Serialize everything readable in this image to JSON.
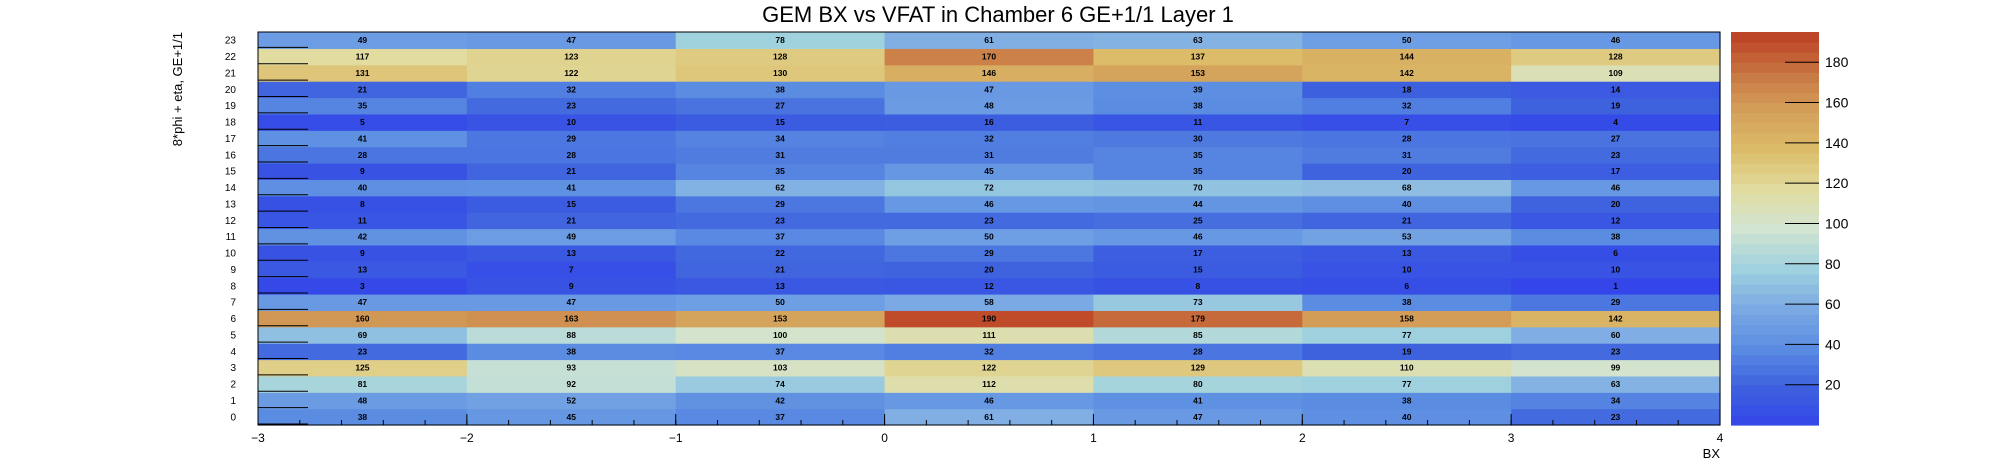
{
  "chart_data": {
    "type": "heatmap",
    "title": "GEM BX vs VFAT in Chamber 6 GE+1/1 Layer 1",
    "xlabel": "BX",
    "ylabel": "8*phi + eta, GE+1/1",
    "x_bins": [
      -3,
      -2,
      -1,
      0,
      1,
      2,
      3,
      4
    ],
    "x_ticks": [
      "−3",
      "−2",
      "−1",
      "0",
      "1",
      "2",
      "3",
      "4"
    ],
    "y_bins": [
      0,
      1,
      2,
      3,
      4,
      5,
      6,
      7,
      8,
      9,
      10,
      11,
      12,
      13,
      14,
      15,
      16,
      17,
      18,
      19,
      20,
      21,
      22,
      23
    ],
    "xlim": [
      -3,
      4
    ],
    "ylim": [
      0,
      24
    ],
    "zlim": [
      0,
      195
    ],
    "z_ticks": [
      20,
      40,
      60,
      80,
      100,
      120,
      140,
      160,
      180
    ],
    "values": [
      [
        38,
        45,
        37,
        61,
        47,
        40,
        23
      ],
      [
        48,
        52,
        42,
        46,
        41,
        38,
        34
      ],
      [
        81,
        92,
        74,
        112,
        80,
        77,
        63
      ],
      [
        125,
        93,
        103,
        122,
        129,
        110,
        99
      ],
      [
        23,
        38,
        37,
        32,
        28,
        19,
        23
      ],
      [
        69,
        88,
        100,
        111,
        85,
        77,
        60
      ],
      [
        160,
        163,
        153,
        190,
        179,
        158,
        142
      ],
      [
        47,
        47,
        50,
        58,
        73,
        38,
        29
      ],
      [
        3,
        9,
        13,
        12,
        8,
        6,
        1
      ],
      [
        13,
        7,
        21,
        20,
        15,
        10,
        10
      ],
      [
        9,
        13,
        22,
        29,
        17,
        13,
        6
      ],
      [
        42,
        49,
        37,
        50,
        46,
        53,
        38
      ],
      [
        11,
        21,
        23,
        23,
        25,
        21,
        12
      ],
      [
        8,
        15,
        29,
        46,
        44,
        40,
        20
      ],
      [
        40,
        41,
        62,
        72,
        70,
        68,
        46
      ],
      [
        9,
        21,
        35,
        45,
        35,
        20,
        17
      ],
      [
        28,
        28,
        31,
        31,
        35,
        31,
        23
      ],
      [
        41,
        29,
        34,
        32,
        30,
        28,
        27
      ],
      [
        5,
        10,
        15,
        16,
        11,
        7,
        4
      ],
      [
        35,
        23,
        27,
        48,
        38,
        32,
        19
      ],
      [
        21,
        32,
        38,
        47,
        39,
        18,
        14
      ],
      [
        131,
        122,
        130,
        146,
        153,
        142,
        109
      ],
      [
        117,
        123,
        128,
        170,
        137,
        144,
        128
      ],
      [
        49,
        47,
        78,
        61,
        63,
        50,
        46
      ]
    ],
    "grid": false,
    "colorbar": "right"
  }
}
